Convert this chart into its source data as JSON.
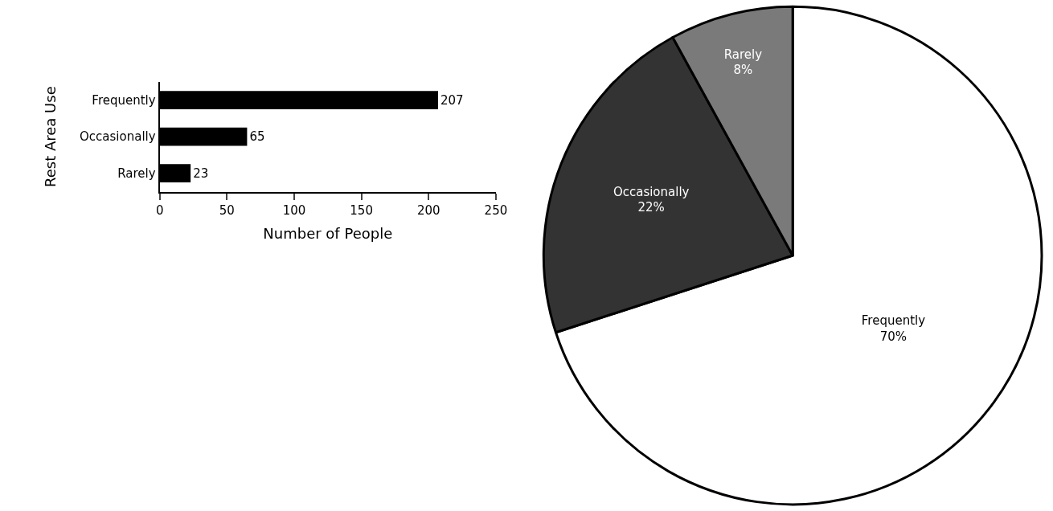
{
  "chart_data": [
    {
      "type": "bar",
      "orientation": "horizontal",
      "categories": [
        "Frequently",
        "Occasionally",
        "Rarely"
      ],
      "values": [
        207,
        65,
        23
      ],
      "color": "#000000",
      "xlim": [
        0,
        250
      ],
      "xticks": [
        0,
        50,
        100,
        150,
        200,
        250
      ],
      "xlabel": "Number of People",
      "ylabel": "Rest Area Use",
      "data_labels": true
    },
    {
      "type": "pie",
      "categories": [
        "Frequently",
        "Occasionally",
        "Rarely"
      ],
      "values": [
        70,
        22,
        8
      ],
      "colors": [
        "#ffffff",
        "#333333",
        "#7a7a7a"
      ],
      "value_labels": [
        "70%",
        "22%",
        "8%"
      ]
    }
  ]
}
